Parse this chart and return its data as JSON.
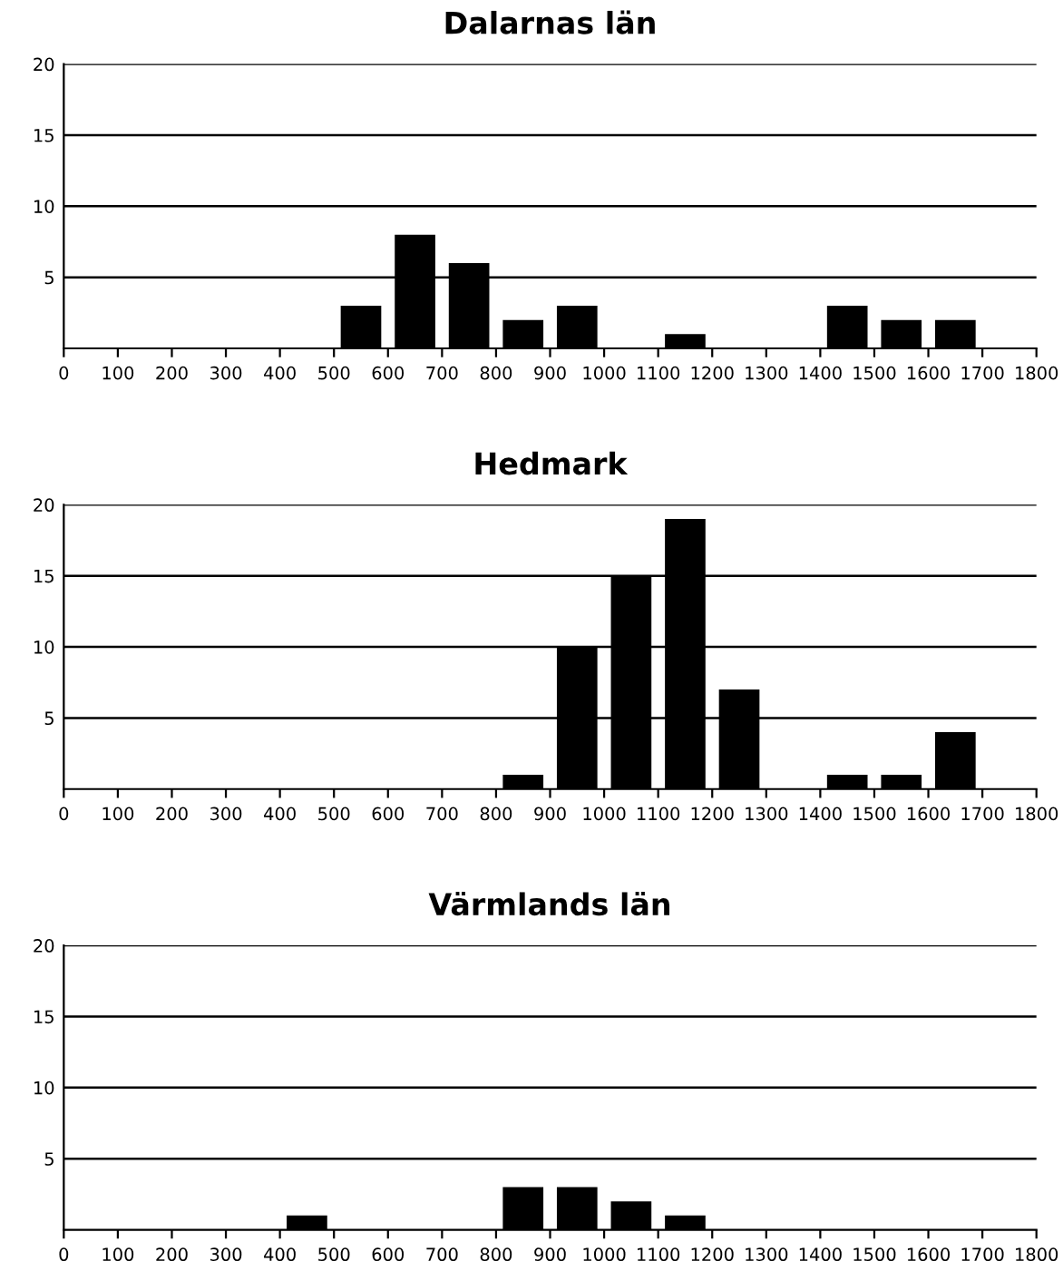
{
  "chart_data": [
    {
      "type": "histogram",
      "title": "Dalarnas län",
      "bins": [
        0,
        100,
        200,
        300,
        400,
        500,
        600,
        700,
        800,
        900,
        1000,
        1100,
        1200,
        1300,
        1400,
        1500,
        1600,
        1700,
        1800
      ],
      "values": [
        0,
        0,
        0,
        0,
        0,
        3,
        8,
        6,
        2,
        3,
        0,
        1,
        0,
        0,
        3,
        2,
        2,
        0
      ],
      "color": "#000000",
      "xlim": [
        0,
        1800
      ],
      "xticks": [
        0,
        100,
        200,
        300,
        400,
        500,
        600,
        700,
        800,
        900,
        1000,
        1100,
        1200,
        1300,
        1400,
        1500,
        1600,
        1700,
        1800
      ],
      "ylim": [
        0,
        20
      ],
      "yticks": [
        5,
        10,
        15,
        20
      ],
      "grid": "y"
    },
    {
      "type": "histogram",
      "title": "Hedmark",
      "bins": [
        0,
        100,
        200,
        300,
        400,
        500,
        600,
        700,
        800,
        900,
        1000,
        1100,
        1200,
        1300,
        1400,
        1500,
        1600,
        1700,
        1800
      ],
      "values": [
        0,
        0,
        0,
        0,
        0,
        0,
        0,
        0,
        1,
        10,
        15,
        19,
        7,
        0,
        1,
        1,
        4,
        0
      ],
      "color": "#000000",
      "xlim": [
        0,
        1800
      ],
      "xticks": [
        0,
        100,
        200,
        300,
        400,
        500,
        600,
        700,
        800,
        900,
        1000,
        1100,
        1200,
        1300,
        1400,
        1500,
        1600,
        1700,
        1800
      ],
      "ylim": [
        0,
        20
      ],
      "yticks": [
        5,
        10,
        15,
        20
      ],
      "grid": "y"
    },
    {
      "type": "histogram",
      "title": "Värmlands län",
      "bins": [
        0,
        100,
        200,
        300,
        400,
        500,
        600,
        700,
        800,
        900,
        1000,
        1100,
        1200,
        1300,
        1400,
        1500,
        1600,
        1700,
        1800
      ],
      "values": [
        0,
        0,
        0,
        0,
        1,
        0,
        0,
        0,
        3,
        3,
        2,
        1,
        0,
        0,
        0,
        0,
        0,
        0
      ],
      "color": "#000000",
      "xlim": [
        0,
        1800
      ],
      "xticks": [
        0,
        100,
        200,
        300,
        400,
        500,
        600,
        700,
        800,
        900,
        1000,
        1100,
        1200,
        1300,
        1400,
        1500,
        1600,
        1700,
        1800
      ],
      "ylim": [
        0,
        20
      ],
      "yticks": [
        5,
        10,
        15,
        20
      ],
      "grid": "y"
    }
  ]
}
